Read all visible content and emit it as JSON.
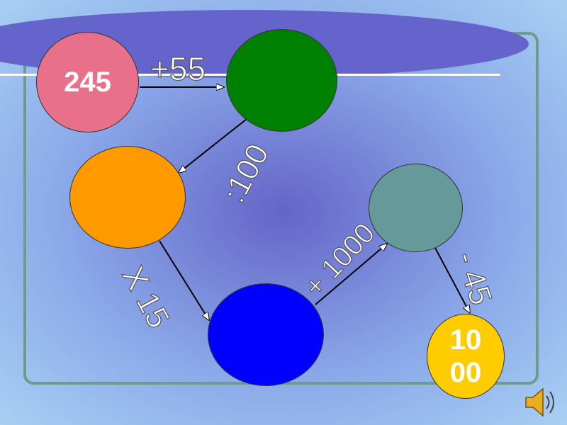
{
  "diagram": {
    "start_value": "245",
    "end_value_line1": "10",
    "end_value_line2": "00",
    "operations": [
      "+55",
      ":100",
      "X 15",
      "+ 1000",
      "- 45"
    ],
    "colors": {
      "start": "#e8708a",
      "step1": "#008000",
      "step2": "#ff9900",
      "step3": "#0000ff",
      "step4": "#669999",
      "end": "#ffcc00"
    }
  },
  "controls": {
    "sound_icon": "speaker-icon"
  }
}
